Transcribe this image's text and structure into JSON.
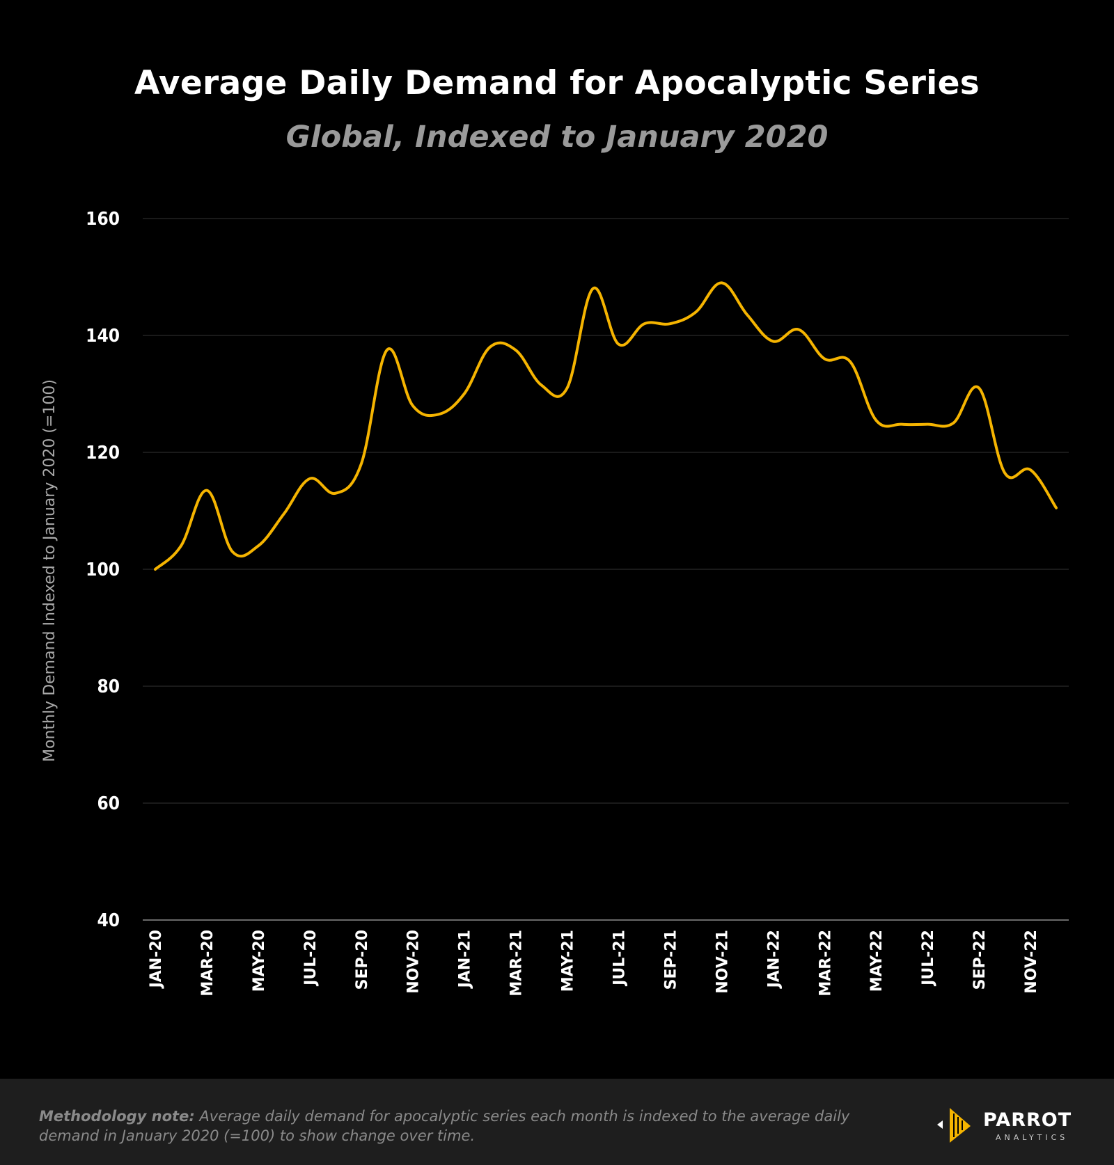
{
  "title": "Average Daily Demand for Apocalyptic Series",
  "subtitle": "Global, Indexed to January 2020",
  "footer": {
    "note_label": "Methodology note:",
    "note_text": " Average daily demand for apocalyptic series each month is indexed to the average daily demand in January 2020 (=100) to show change over time.",
    "logo_word": "PARROT",
    "logo_sub": "ANALYTICS"
  },
  "colors": {
    "line": "#f5b400",
    "background": "#000000",
    "grid": "#2a2a2a",
    "footer_bg": "#1e1e1e"
  },
  "chart_data": {
    "type": "line",
    "title": "Average Daily Demand for Apocalyptic Series",
    "subtitle": "Global, Indexed to January 2020",
    "xlabel": "",
    "ylabel": "Monthly Demand Indexed to January 2020 (=100)",
    "ylim": [
      40,
      160
    ],
    "yticks": [
      40,
      60,
      80,
      100,
      120,
      140,
      160
    ],
    "grid": true,
    "x": [
      "JAN-20",
      "FEB-20",
      "MAR-20",
      "APR-20",
      "MAY-20",
      "JUN-20",
      "JUL-20",
      "AUG-20",
      "SEP-20",
      "OCT-20",
      "NOV-20",
      "DEC-20",
      "JAN-21",
      "FEB-21",
      "MAR-21",
      "APR-21",
      "MAY-21",
      "JUN-21",
      "JUL-21",
      "AUG-21",
      "SEP-21",
      "OCT-21",
      "NOV-21",
      "DEC-21",
      "JAN-22",
      "FEB-22",
      "MAR-22",
      "APR-22",
      "MAY-22",
      "JUN-22",
      "JUL-22",
      "AUG-22",
      "SEP-22",
      "OCT-22",
      "NOV-22",
      "DEC-22"
    ],
    "xtick_labels": [
      "JAN-20",
      "MAR-20",
      "MAY-20",
      "JUL-20",
      "SEP-20",
      "NOV-20",
      "JAN-21",
      "MAR-21",
      "MAY-21",
      "JUL-21",
      "SEP-21",
      "NOV-21",
      "JAN-22",
      "MAR-22",
      "MAY-22",
      "JUL-22",
      "SEP-22",
      "NOV-22"
    ],
    "series": [
      {
        "values": [
          100,
          104,
          113.5,
          103,
          104,
          109.5,
          115.5,
          113,
          118,
          137.5,
          128,
          126.5,
          130,
          138,
          137.5,
          131.5,
          131,
          148,
          138.5,
          142,
          142,
          144,
          149,
          143.5,
          139,
          141,
          136,
          135.5,
          125.5,
          124.8,
          124.8,
          125,
          131,
          116.5,
          117,
          110.5
        ]
      }
    ]
  }
}
